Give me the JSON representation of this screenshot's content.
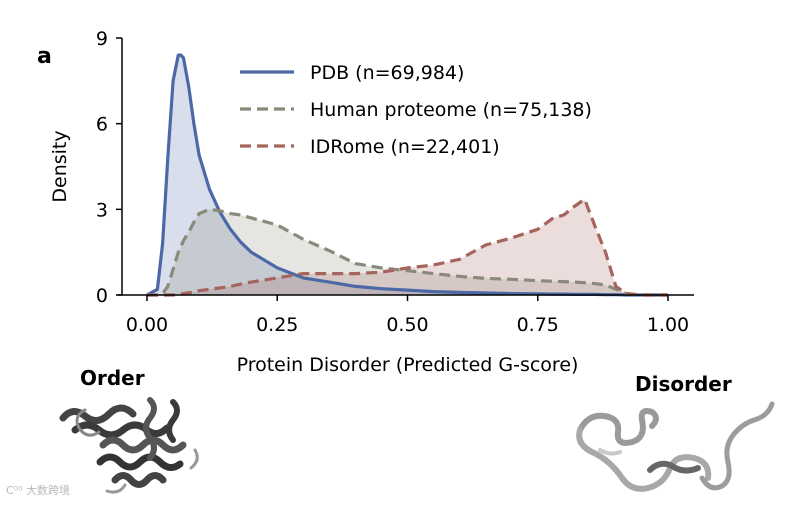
{
  "panel_label": "a",
  "annotations": {
    "order": "Order",
    "disorder": "Disorder"
  },
  "watermark": "C⁰⁰ 大数跨境",
  "chart_data": {
    "type": "area",
    "title": "",
    "xlabel": "Protein Disorder (Predicted G-score)",
    "ylabel": "Density",
    "xlim": [
      0,
      1
    ],
    "ylim": [
      0,
      9
    ],
    "xticks": [
      "0.00",
      "0.25",
      "0.50",
      "0.75",
      "1.00"
    ],
    "yticks": [
      "0",
      "3",
      "6",
      "9"
    ],
    "legend_position": "top-center",
    "grid": false,
    "x": [
      0.0,
      0.02,
      0.03,
      0.04,
      0.05,
      0.06,
      0.065,
      0.07,
      0.08,
      0.09,
      0.1,
      0.12,
      0.14,
      0.16,
      0.18,
      0.2,
      0.25,
      0.3,
      0.35,
      0.4,
      0.45,
      0.5,
      0.55,
      0.6,
      0.65,
      0.7,
      0.75,
      0.78,
      0.8,
      0.82,
      0.84,
      0.86,
      0.88,
      0.9,
      0.92,
      0.95,
      1.0
    ],
    "series": [
      {
        "name": "PDB (n=69,984)",
        "color": "#4c68a6",
        "dash": "solid",
        "values": [
          0,
          0.2,
          1.8,
          4.8,
          7.5,
          8.4,
          8.4,
          8.3,
          7.3,
          6.0,
          4.9,
          3.7,
          2.9,
          2.3,
          1.85,
          1.5,
          0.95,
          0.6,
          0.45,
          0.3,
          0.22,
          0.17,
          0.12,
          0.09,
          0.07,
          0.05,
          0.04,
          0.03,
          0.03,
          0.02,
          0.02,
          0.02,
          0.01,
          0.01,
          0,
          0,
          0
        ]
      },
      {
        "name": "Human proteome (n=75,138)",
        "color": "#8a8a7a",
        "dash": "dashed",
        "values": [
          0,
          0,
          0.05,
          0.3,
          0.9,
          1.5,
          1.7,
          1.9,
          2.2,
          2.55,
          2.85,
          3.0,
          2.95,
          2.85,
          2.8,
          2.7,
          2.45,
          1.95,
          1.55,
          1.1,
          0.95,
          0.85,
          0.75,
          0.65,
          0.58,
          0.55,
          0.5,
          0.48,
          0.47,
          0.45,
          0.43,
          0.4,
          0.35,
          0.2,
          0.05,
          0,
          0
        ]
      },
      {
        "name": "IDRome (n=22,401)",
        "color": "#a5645c",
        "dash": "dashed",
        "values": [
          0,
          0,
          0,
          0,
          0,
          0.02,
          0.03,
          0.05,
          0.08,
          0.1,
          0.15,
          0.2,
          0.25,
          0.3,
          0.38,
          0.45,
          0.6,
          0.75,
          0.75,
          0.75,
          0.8,
          0.95,
          1.05,
          1.25,
          1.75,
          2.0,
          2.3,
          2.7,
          2.8,
          3.1,
          3.35,
          2.4,
          1.5,
          0.3,
          0.05,
          0,
          0
        ]
      }
    ]
  }
}
